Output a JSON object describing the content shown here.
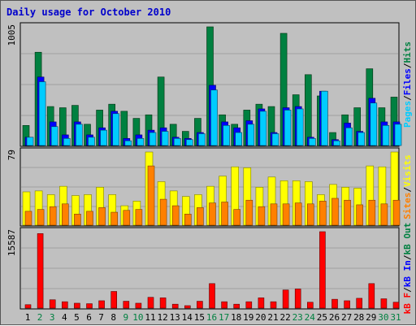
{
  "title": "Daily usage for October 2010",
  "colors": {
    "pages": "#00ccff",
    "files": "#0000ff",
    "hits": "#008040",
    "sites": "#ff8000",
    "visits": "#ffff00",
    "kb_f": "#ff0000",
    "kb_in": "#0000ff",
    "kb_out": "#008040",
    "weekday_label": "#000000",
    "weekend_label": "#008040"
  },
  "chart_data": [
    {
      "type": "bar",
      "panel": "hits_files_pages",
      "ymax_label": "1005",
      "ymax": 1005,
      "side_label": [
        "Pages",
        "/",
        "Files",
        "/",
        "Hits"
      ],
      "categories": [
        "1",
        "2",
        "3",
        "4",
        "5",
        "6",
        "7",
        "8",
        "9",
        "10",
        "11",
        "12",
        "13",
        "14",
        "15",
        "16",
        "17",
        "18",
        "19",
        "20",
        "21",
        "22",
        "23",
        "24",
        "25",
        "26",
        "27",
        "28",
        "29",
        "30",
        "31"
      ],
      "series": [
        {
          "name": "Hits",
          "values": [
            170,
            790,
            330,
            320,
            340,
            180,
            300,
            350,
            290,
            230,
            260,
            580,
            180,
            120,
            230,
            1005,
            260,
            180,
            300,
            350,
            330,
            950,
            430,
            600,
            420,
            110,
            260,
            320,
            650,
            320,
            410
          ]
        },
        {
          "name": "Files",
          "values": [
            70,
            580,
            200,
            90,
            200,
            90,
            150,
            290,
            60,
            90,
            130,
            150,
            70,
            60,
            110,
            510,
            200,
            150,
            210,
            310,
            110,
            320,
            330,
            70,
            460,
            50,
            190,
            120,
            400,
            200,
            200
          ]
        },
        {
          "name": "Pages",
          "values": [
            70,
            540,
            160,
            60,
            180,
            70,
            130,
            270,
            40,
            60,
            110,
            120,
            60,
            50,
            100,
            470,
            170,
            110,
            180,
            290,
            100,
            300,
            310,
            60,
            460,
            40,
            150,
            110,
            360,
            170,
            180
          ]
        }
      ]
    },
    {
      "type": "bar",
      "panel": "visits_sites",
      "ymax_label": "79",
      "ymax": 79,
      "side_label": [
        "Visits",
        "/",
        "Sites"
      ],
      "categories": [
        "1",
        "2",
        "3",
        "4",
        "5",
        "6",
        "7",
        "8",
        "9",
        "10",
        "11",
        "12",
        "13",
        "14",
        "15",
        "16",
        "17",
        "18",
        "19",
        "20",
        "21",
        "22",
        "23",
        "24",
        "25",
        "26",
        "27",
        "28",
        "29",
        "30",
        "31"
      ],
      "series": [
        {
          "name": "Visits",
          "values": [
            36,
            37,
            33,
            42,
            32,
            33,
            41,
            33,
            21,
            26,
            79,
            47,
            37,
            31,
            33,
            42,
            53,
            63,
            62,
            41,
            52,
            48,
            48,
            47,
            33,
            44,
            41,
            40,
            64,
            63,
            79
          ]
        },
        {
          "name": "Sites",
          "values": [
            15,
            17,
            20,
            23,
            12,
            15,
            19,
            14,
            16,
            17,
            64,
            28,
            21,
            12,
            19,
            24,
            25,
            17,
            27,
            20,
            23,
            23,
            24,
            23,
            26,
            29,
            27,
            22,
            27,
            23,
            27
          ]
        }
      ]
    },
    {
      "type": "bar",
      "panel": "kbytes",
      "ymax_label": "15587",
      "ymax": 15587,
      "side_label": [
        "kB F",
        "/",
        "kB In",
        "/",
        "kB Out"
      ],
      "categories": [
        "1",
        "2",
        "3",
        "4",
        "5",
        "6",
        "7",
        "8",
        "9",
        "10",
        "11",
        "12",
        "13",
        "14",
        "15",
        "16",
        "17",
        "18",
        "19",
        "20",
        "21",
        "22",
        "23",
        "24",
        "25",
        "26",
        "27",
        "28",
        "29",
        "30",
        "31"
      ],
      "series": [
        {
          "name": "kB F",
          "values": [
            700,
            15200,
            1700,
            1300,
            1000,
            900,
            1500,
            3400,
            1400,
            1000,
            2200,
            2100,
            800,
            500,
            1400,
            5000,
            1300,
            800,
            1300,
            2100,
            1300,
            3700,
            3900,
            1200,
            15587,
            1800,
            1500,
            2000,
            5000,
            1900,
            1200
          ]
        }
      ]
    }
  ],
  "x_labels": {
    "days": [
      "1",
      "2",
      "3",
      "4",
      "5",
      "6",
      "7",
      "8",
      "9",
      "10",
      "11",
      "12",
      "13",
      "14",
      "15",
      "16",
      "17",
      "18",
      "19",
      "20",
      "21",
      "22",
      "23",
      "24",
      "25",
      "26",
      "27",
      "28",
      "29",
      "30",
      "31"
    ],
    "weekend": [
      "2",
      "3",
      "9",
      "10",
      "16",
      "17",
      "23",
      "24",
      "30",
      "31"
    ]
  }
}
